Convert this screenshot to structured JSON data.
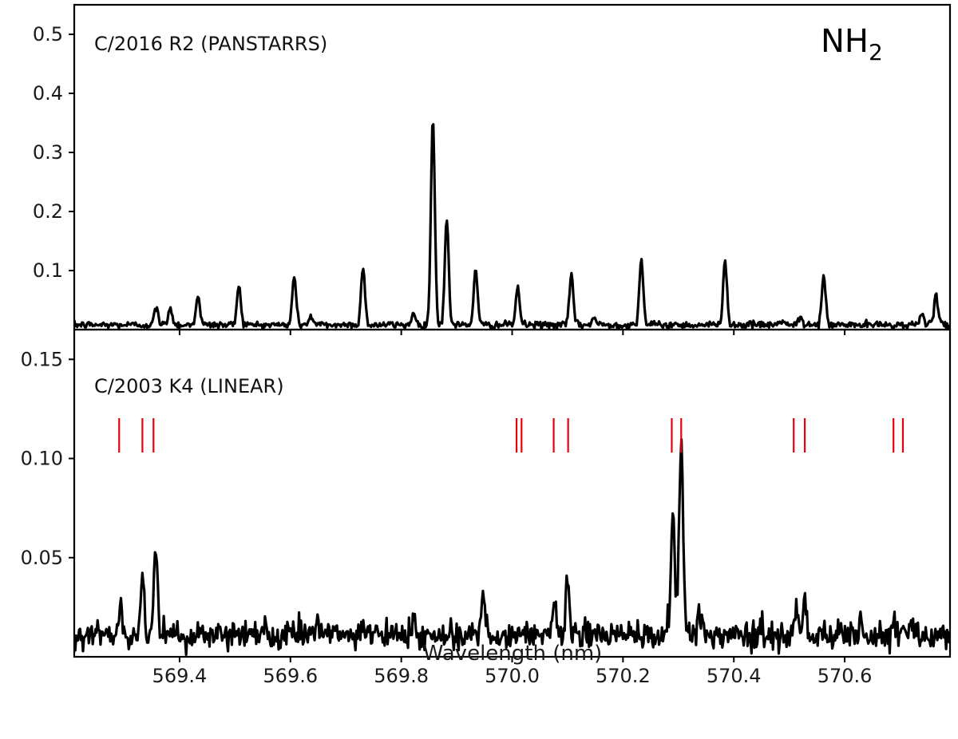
{
  "chart_data": {
    "type": "line",
    "species_label": "NH",
    "species_subscript": "2",
    "xlabel": "Wavelength (nm)",
    "xlim": [
      569.21,
      570.79
    ],
    "x_ticks": [
      569.4,
      569.6,
      569.8,
      570.0,
      570.2,
      570.4,
      570.6
    ],
    "x_tick_labels": [
      "569.4",
      "569.6",
      "569.8",
      "570.0",
      "570.2",
      "570.4",
      "570.6"
    ],
    "line_color": "#000000",
    "marker_color": "#e8000b",
    "panels": [
      {
        "label": "C/2016 R2 (PANSTARRS)",
        "ylim": [
          0.0,
          0.55
        ],
        "y_ticks": [
          0.1,
          0.2,
          0.3,
          0.4,
          0.5
        ],
        "y_tick_labels": [
          "0.1",
          "0.2",
          "0.3",
          "0.4",
          "0.5"
        ],
        "baseline": 0.008,
        "noise": 0.003,
        "peaks": [
          {
            "x": 569.358,
            "h": 0.028
          },
          {
            "x": 569.383,
            "h": 0.03
          },
          {
            "x": 569.433,
            "h": 0.05
          },
          {
            "x": 569.507,
            "h": 0.068
          },
          {
            "x": 569.607,
            "h": 0.083
          },
          {
            "x": 569.637,
            "h": 0.015
          },
          {
            "x": 569.731,
            "h": 0.097
          },
          {
            "x": 569.822,
            "h": 0.02
          },
          {
            "x": 569.857,
            "h": 0.35
          },
          {
            "x": 569.882,
            "h": 0.178
          },
          {
            "x": 569.934,
            "h": 0.093
          },
          {
            "x": 570.01,
            "h": 0.064
          },
          {
            "x": 570.107,
            "h": 0.085
          },
          {
            "x": 570.148,
            "h": 0.012
          },
          {
            "x": 570.233,
            "h": 0.112
          },
          {
            "x": 570.384,
            "h": 0.11
          },
          {
            "x": 570.485,
            "h": 0.008
          },
          {
            "x": 570.52,
            "h": 0.01
          },
          {
            "x": 570.562,
            "h": 0.082
          },
          {
            "x": 570.74,
            "h": 0.023
          },
          {
            "x": 570.765,
            "h": 0.048
          }
        ]
      },
      {
        "label": "C/2003 K4 (LINEAR)",
        "ylim": [
          0.0,
          0.165
        ],
        "y_ticks": [
          0.05,
          0.1,
          0.15
        ],
        "y_tick_labels": [
          "0.05",
          "0.10",
          "0.15"
        ],
        "baseline": 0.011,
        "noise": 0.0035,
        "peaks": [
          {
            "x": 569.295,
            "h": 0.012
          },
          {
            "x": 569.333,
            "h": 0.028
          },
          {
            "x": 569.357,
            "h": 0.045
          },
          {
            "x": 569.552,
            "h": 0.006
          },
          {
            "x": 569.648,
            "h": 0.008
          },
          {
            "x": 569.822,
            "h": 0.008
          },
          {
            "x": 569.948,
            "h": 0.02
          },
          {
            "x": 570.077,
            "h": 0.013
          },
          {
            "x": 570.1,
            "h": 0.027
          },
          {
            "x": 570.29,
            "h": 0.062
          },
          {
            "x": 570.305,
            "h": 0.098
          },
          {
            "x": 570.338,
            "h": 0.012
          },
          {
            "x": 570.512,
            "h": 0.014
          },
          {
            "x": 570.528,
            "h": 0.017
          },
          {
            "x": 570.63,
            "h": 0.006
          },
          {
            "x": 570.69,
            "h": 0.009
          },
          {
            "x": 570.708,
            "h": 0.006
          }
        ],
        "line_markers": [
          569.291,
          569.333,
          569.353,
          570.008,
          570.017,
          570.075,
          570.101,
          570.288,
          570.305,
          570.508,
          570.528,
          570.688,
          570.705
        ]
      }
    ]
  }
}
